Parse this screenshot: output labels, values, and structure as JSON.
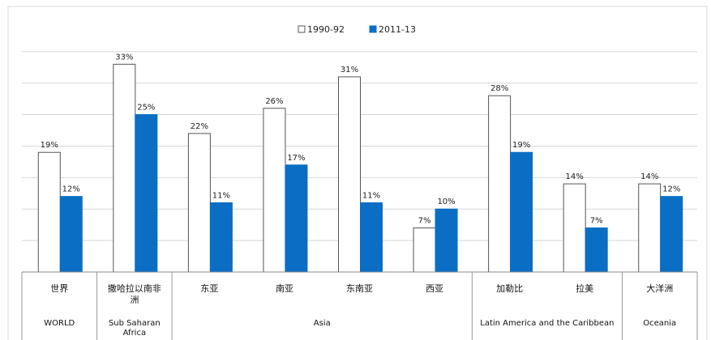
{
  "chart_data": {
    "type": "bar",
    "categories": [
      "世界",
      "撒哈拉以南非洲",
      "东亚",
      "南亚",
      "东南亚",
      "西亚",
      "加勒比",
      "拉美",
      "大洋洲"
    ],
    "series": [
      {
        "name": "1990-92",
        "values": [
          19,
          33,
          22,
          26,
          31,
          7,
          28,
          14,
          14
        ],
        "color": "#ffffff"
      },
      {
        "name": "2011-13",
        "values": [
          12,
          25,
          11,
          17,
          11,
          10,
          19,
          7,
          12
        ],
        "color": "#0a6ec4"
      }
    ],
    "value_labels": [
      [
        "19%",
        "33%",
        "22%",
        "26%",
        "31%",
        "7%",
        "28%",
        "14%",
        "14%"
      ],
      [
        "12%",
        "25%",
        "11%",
        "17%",
        "11%",
        "10%",
        "19%",
        "7%",
        "12%"
      ]
    ],
    "groups": [
      {
        "label": "WORLD",
        "categories": 1
      },
      {
        "label": "Sub Saharan Africa",
        "categories": 1
      },
      {
        "label": "Asia",
        "categories": 4
      },
      {
        "label": "Latin America and the Caribbean",
        "categories": 2
      },
      {
        "label": "Oceania",
        "categories": 1
      }
    ],
    "ylim": [
      0,
      36
    ],
    "grid": true,
    "legend": "top-center",
    "title": "",
    "xlabel": "",
    "ylabel": ""
  }
}
